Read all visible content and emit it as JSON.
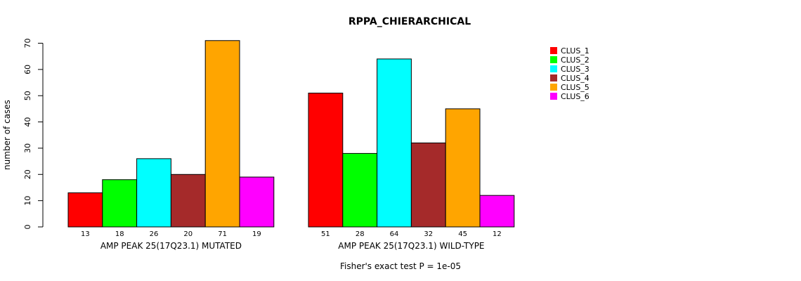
{
  "chart_data": {
    "type": "bar",
    "title": "RPPA_CHIERARCHICAL",
    "ylabel": "number of cases",
    "ylim": [
      0,
      70
    ],
    "yticks": [
      0,
      10,
      20,
      30,
      40,
      50,
      60,
      70
    ],
    "groups": [
      {
        "label": "AMP PEAK 25(17Q23.1) MUTATED",
        "values": [
          13,
          18,
          26,
          20,
          71,
          19
        ]
      },
      {
        "label": "AMP PEAK 25(17Q23.1) WILD-TYPE",
        "values": [
          51,
          28,
          64,
          32,
          45,
          12
        ]
      }
    ],
    "series": [
      {
        "name": "CLUS_1",
        "color": "#ff0000"
      },
      {
        "name": "CLUS_2",
        "color": "#00ff00"
      },
      {
        "name": "CLUS_3",
        "color": "#00ffff"
      },
      {
        "name": "CLUS_4",
        "color": "#a52a2a"
      },
      {
        "name": "CLUS_5",
        "color": "#ffa500"
      },
      {
        "name": "CLUS_6",
        "color": "#ff00ff"
      }
    ],
    "legend_position": "top-right",
    "footnote": "Fisher's exact test P = 1e-05"
  }
}
